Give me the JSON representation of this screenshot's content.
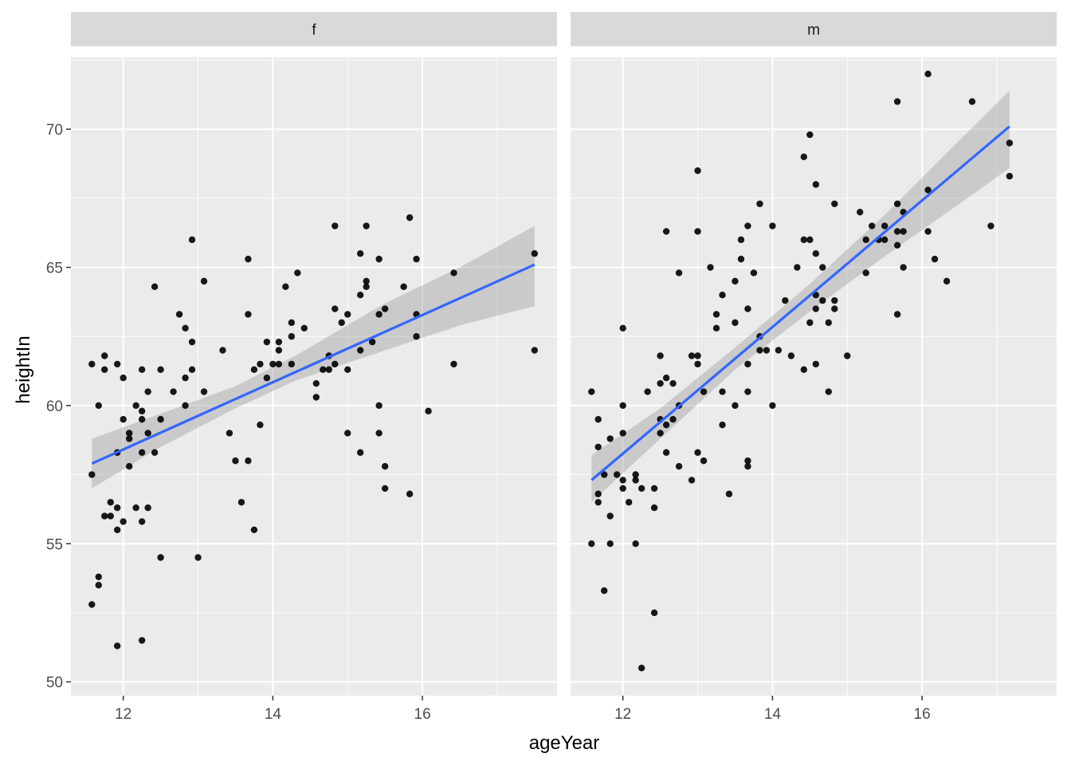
{
  "chart_data": {
    "type": "scatter",
    "xlabel": "ageYear",
    "ylabel": "heightIn",
    "facet_layout": "columns",
    "grid": true,
    "smoother": "linear regression line with confidence band",
    "colors": {
      "panel_bg": "#ebebeb",
      "strip_bg": "#d9d9d9",
      "grid_major": "#ffffff",
      "point": "#000000",
      "fit_line": "#3366ff",
      "band": "#999999"
    },
    "xlim": [
      11.3,
      17.8
    ],
    "ylim": [
      49.5,
      72.6
    ],
    "x_ticks": [
      12,
      14,
      16
    ],
    "y_ticks": [
      50,
      55,
      60,
      65,
      70
    ],
    "panels": [
      {
        "label": "f",
        "fit": {
          "x": [
            11.58,
            17.5
          ],
          "y": [
            57.9,
            65.1
          ]
        },
        "band": [
          {
            "x": 11.58,
            "lo": 57.0,
            "hi": 58.8
          },
          {
            "x": 12.5,
            "lo": 58.5,
            "hi": 59.7
          },
          {
            "x": 13.5,
            "lo": 59.9,
            "hi": 60.7
          },
          {
            "x": 14.3,
            "lo": 60.9,
            "hi": 61.8
          },
          {
            "x": 15.5,
            "lo": 62.0,
            "hi": 63.7
          },
          {
            "x": 16.5,
            "lo": 62.9,
            "hi": 65.0
          },
          {
            "x": 17.5,
            "lo": 63.6,
            "hi": 66.5
          }
        ],
        "points": [
          [
            11.58,
            61.5
          ],
          [
            11.58,
            57.5
          ],
          [
            11.58,
            52.8
          ],
          [
            11.67,
            60.0
          ],
          [
            11.67,
            53.8
          ],
          [
            11.67,
            53.5
          ],
          [
            11.75,
            61.8
          ],
          [
            11.75,
            61.3
          ],
          [
            11.75,
            56.0
          ],
          [
            11.83,
            56.5
          ],
          [
            11.83,
            56.0
          ],
          [
            11.92,
            61.5
          ],
          [
            11.92,
            58.3
          ],
          [
            11.92,
            56.3
          ],
          [
            11.92,
            55.5
          ],
          [
            11.92,
            51.3
          ],
          [
            12.0,
            61.0
          ],
          [
            12.0,
            59.5
          ],
          [
            12.0,
            55.8
          ],
          [
            12.08,
            59.0
          ],
          [
            12.08,
            58.8
          ],
          [
            12.08,
            57.8
          ],
          [
            12.17,
            60.0
          ],
          [
            12.17,
            56.3
          ],
          [
            12.25,
            61.3
          ],
          [
            12.25,
            59.8
          ],
          [
            12.25,
            59.5
          ],
          [
            12.25,
            58.3
          ],
          [
            12.25,
            55.8
          ],
          [
            12.25,
            51.5
          ],
          [
            12.33,
            60.5
          ],
          [
            12.33,
            59.0
          ],
          [
            12.33,
            56.3
          ],
          [
            12.42,
            64.3
          ],
          [
            12.42,
            58.3
          ],
          [
            12.5,
            61.3
          ],
          [
            12.5,
            59.5
          ],
          [
            12.5,
            54.5
          ],
          [
            12.67,
            60.5
          ],
          [
            12.75,
            63.3
          ],
          [
            12.83,
            62.8
          ],
          [
            12.83,
            61.0
          ],
          [
            12.83,
            60.0
          ],
          [
            12.92,
            66.0
          ],
          [
            12.92,
            62.3
          ],
          [
            12.92,
            61.3
          ],
          [
            13.0,
            54.5
          ],
          [
            13.08,
            64.5
          ],
          [
            13.08,
            60.5
          ],
          [
            13.33,
            62.0
          ],
          [
            13.42,
            59.0
          ],
          [
            13.5,
            58.0
          ],
          [
            13.58,
            56.5
          ],
          [
            13.67,
            65.3
          ],
          [
            13.67,
            63.3
          ],
          [
            13.67,
            58.0
          ],
          [
            13.75,
            61.3
          ],
          [
            13.75,
            55.5
          ],
          [
            13.83,
            61.5
          ],
          [
            13.83,
            59.3
          ],
          [
            13.92,
            62.3
          ],
          [
            13.92,
            61.0
          ],
          [
            14.0,
            61.5
          ],
          [
            14.08,
            62.3
          ],
          [
            14.08,
            62.0
          ],
          [
            14.08,
            61.5
          ],
          [
            14.17,
            64.3
          ],
          [
            14.25,
            63.0
          ],
          [
            14.25,
            62.5
          ],
          [
            14.25,
            61.5
          ],
          [
            14.33,
            64.8
          ],
          [
            14.42,
            62.8
          ],
          [
            14.58,
            60.8
          ],
          [
            14.58,
            60.3
          ],
          [
            14.67,
            61.3
          ],
          [
            14.75,
            61.8
          ],
          [
            14.75,
            61.3
          ],
          [
            14.83,
            66.5
          ],
          [
            14.83,
            63.5
          ],
          [
            14.83,
            61.5
          ],
          [
            14.92,
            63.0
          ],
          [
            15.0,
            63.3
          ],
          [
            15.0,
            61.3
          ],
          [
            15.0,
            59.0
          ],
          [
            15.17,
            65.5
          ],
          [
            15.17,
            64.0
          ],
          [
            15.17,
            62.0
          ],
          [
            15.17,
            58.3
          ],
          [
            15.25,
            66.5
          ],
          [
            15.25,
            64.5
          ],
          [
            15.25,
            64.3
          ],
          [
            15.33,
            62.3
          ],
          [
            15.42,
            65.3
          ],
          [
            15.42,
            63.3
          ],
          [
            15.42,
            60.0
          ],
          [
            15.42,
            59.0
          ],
          [
            15.5,
            63.5
          ],
          [
            15.5,
            57.8
          ],
          [
            15.5,
            57.0
          ],
          [
            15.75,
            64.3
          ],
          [
            15.83,
            66.8
          ],
          [
            15.83,
            56.8
          ],
          [
            15.92,
            65.3
          ],
          [
            15.92,
            63.3
          ],
          [
            15.92,
            62.5
          ],
          [
            16.08,
            59.8
          ],
          [
            16.42,
            64.8
          ],
          [
            16.42,
            61.5
          ],
          [
            17.5,
            65.5
          ],
          [
            17.5,
            62.0
          ]
        ]
      },
      {
        "label": "m",
        "fit": {
          "x": [
            11.58,
            17.17
          ],
          "y": [
            57.3,
            70.1
          ]
        },
        "band": [
          {
            "x": 11.58,
            "lo": 56.5,
            "hi": 58.2
          },
          {
            "x": 12.5,
            "lo": 58.8,
            "hi": 59.9
          },
          {
            "x": 13.5,
            "lo": 61.3,
            "hi": 62.1
          },
          {
            "x": 14.5,
            "lo": 63.4,
            "hi": 64.4
          },
          {
            "x": 15.5,
            "lo": 65.4,
            "hi": 66.9
          },
          {
            "x": 16.5,
            "lo": 67.3,
            "hi": 69.6
          },
          {
            "x": 17.17,
            "lo": 68.6,
            "hi": 71.4
          }
        ],
        "points": [
          [
            11.58,
            60.5
          ],
          [
            11.58,
            55.0
          ],
          [
            11.67,
            59.5
          ],
          [
            11.67,
            58.5
          ],
          [
            11.67,
            56.8
          ],
          [
            11.67,
            56.5
          ],
          [
            11.75,
            57.5
          ],
          [
            11.75,
            53.3
          ],
          [
            11.83,
            58.8
          ],
          [
            11.83,
            56.0
          ],
          [
            11.83,
            55.0
          ],
          [
            11.92,
            57.5
          ],
          [
            12.0,
            62.8
          ],
          [
            12.0,
            60.0
          ],
          [
            12.0,
            59.0
          ],
          [
            12.0,
            57.3
          ],
          [
            12.0,
            57.0
          ],
          [
            12.08,
            56.5
          ],
          [
            12.17,
            57.5
          ],
          [
            12.17,
            57.3
          ],
          [
            12.17,
            55.0
          ],
          [
            12.25,
            57.0
          ],
          [
            12.25,
            50.5
          ],
          [
            12.33,
            60.5
          ],
          [
            12.42,
            57.0
          ],
          [
            12.42,
            56.3
          ],
          [
            12.42,
            52.5
          ],
          [
            12.5,
            61.8
          ],
          [
            12.5,
            60.8
          ],
          [
            12.5,
            59.5
          ],
          [
            12.5,
            59.0
          ],
          [
            12.58,
            66.3
          ],
          [
            12.58,
            61.0
          ],
          [
            12.58,
            59.3
          ],
          [
            12.58,
            58.3
          ],
          [
            12.67,
            60.8
          ],
          [
            12.67,
            59.5
          ],
          [
            12.75,
            64.8
          ],
          [
            12.75,
            60.0
          ],
          [
            12.75,
            57.8
          ],
          [
            12.92,
            61.8
          ],
          [
            12.92,
            57.3
          ],
          [
            13.0,
            68.5
          ],
          [
            13.0,
            66.3
          ],
          [
            13.0,
            61.8
          ],
          [
            13.0,
            61.5
          ],
          [
            13.0,
            58.3
          ],
          [
            13.08,
            60.5
          ],
          [
            13.08,
            58.0
          ],
          [
            13.17,
            65.0
          ],
          [
            13.25,
            63.3
          ],
          [
            13.25,
            62.8
          ],
          [
            13.33,
            64.0
          ],
          [
            13.33,
            60.5
          ],
          [
            13.33,
            59.3
          ],
          [
            13.42,
            56.8
          ],
          [
            13.5,
            64.5
          ],
          [
            13.5,
            63.0
          ],
          [
            13.5,
            60.0
          ],
          [
            13.58,
            66.0
          ],
          [
            13.58,
            65.3
          ],
          [
            13.67,
            66.5
          ],
          [
            13.67,
            63.5
          ],
          [
            13.67,
            61.5
          ],
          [
            13.67,
            60.5
          ],
          [
            13.67,
            58.0
          ],
          [
            13.67,
            57.8
          ],
          [
            13.75,
            64.8
          ],
          [
            13.83,
            67.3
          ],
          [
            13.83,
            62.5
          ],
          [
            13.83,
            62.0
          ],
          [
            13.92,
            62.0
          ],
          [
            14.0,
            66.5
          ],
          [
            14.0,
            60.0
          ],
          [
            14.08,
            62.0
          ],
          [
            14.17,
            63.8
          ],
          [
            14.25,
            61.8
          ],
          [
            14.33,
            65.0
          ],
          [
            14.42,
            69.0
          ],
          [
            14.42,
            66.0
          ],
          [
            14.42,
            61.3
          ],
          [
            14.5,
            69.8
          ],
          [
            14.5,
            66.0
          ],
          [
            14.5,
            63.0
          ],
          [
            14.58,
            68.0
          ],
          [
            14.58,
            65.5
          ],
          [
            14.58,
            64.0
          ],
          [
            14.58,
            63.5
          ],
          [
            14.58,
            61.5
          ],
          [
            14.67,
            65.0
          ],
          [
            14.67,
            63.8
          ],
          [
            14.75,
            63.0
          ],
          [
            14.75,
            60.5
          ],
          [
            14.83,
            67.3
          ],
          [
            14.83,
            63.8
          ],
          [
            14.83,
            63.5
          ],
          [
            15.0,
            61.8
          ],
          [
            15.17,
            67.0
          ],
          [
            15.25,
            66.0
          ],
          [
            15.25,
            64.8
          ],
          [
            15.33,
            66.5
          ],
          [
            15.42,
            66.0
          ],
          [
            15.5,
            66.5
          ],
          [
            15.5,
            66.0
          ],
          [
            15.67,
            71.0
          ],
          [
            15.67,
            67.3
          ],
          [
            15.67,
            66.3
          ],
          [
            15.67,
            65.8
          ],
          [
            15.67,
            63.3
          ],
          [
            15.75,
            67.0
          ],
          [
            15.75,
            66.3
          ],
          [
            15.75,
            65.0
          ],
          [
            16.08,
            72.0
          ],
          [
            16.08,
            67.8
          ],
          [
            16.08,
            66.3
          ],
          [
            16.17,
            65.3
          ],
          [
            16.33,
            64.5
          ],
          [
            16.67,
            71.0
          ],
          [
            16.92,
            66.5
          ],
          [
            17.17,
            69.5
          ],
          [
            17.17,
            68.3
          ]
        ]
      }
    ]
  }
}
